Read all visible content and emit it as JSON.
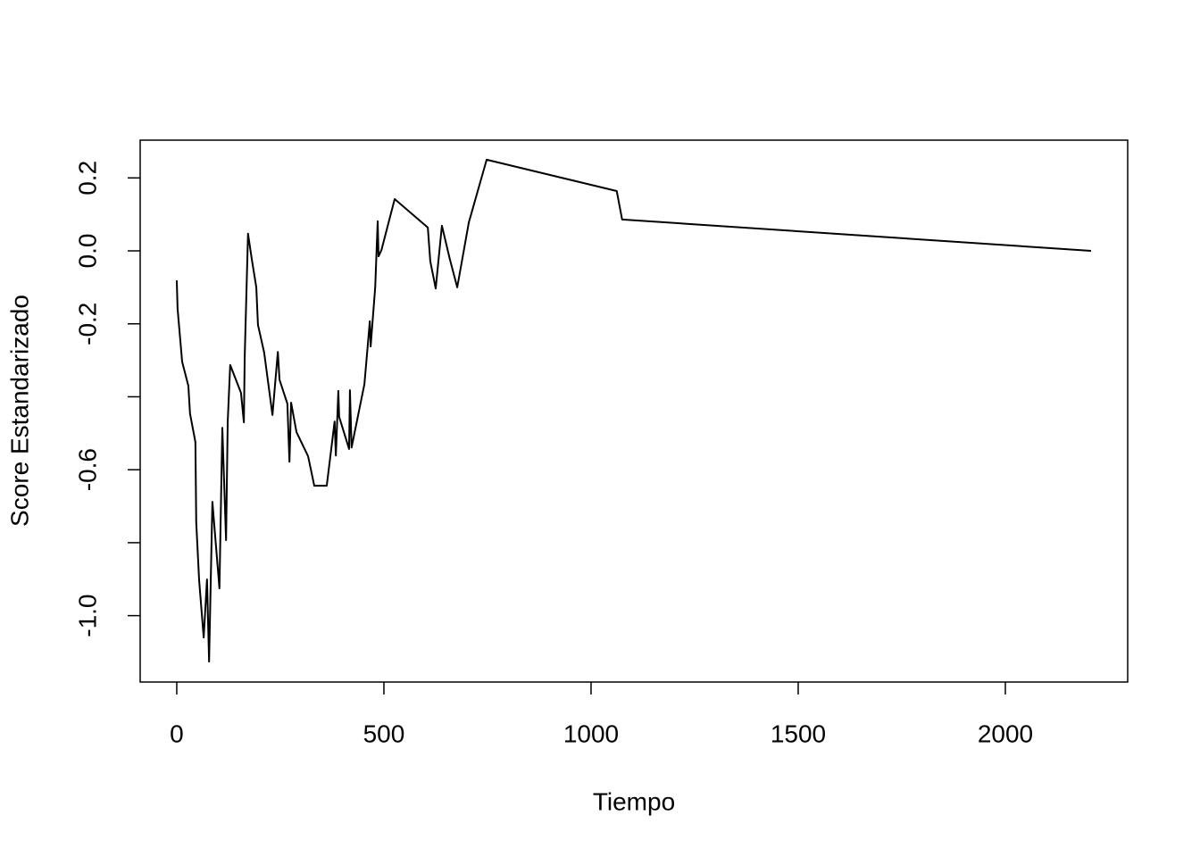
{
  "chart_data": {
    "type": "line",
    "xlabel": "Tiempo",
    "ylabel": "Score Estandarizado",
    "x": [
      0,
      2,
      13,
      28,
      32,
      45,
      47,
      54,
      65,
      73,
      78,
      86,
      103,
      110,
      119,
      123,
      129,
      155,
      162,
      164,
      172,
      181,
      192,
      196,
      211,
      231,
      244,
      248,
      267,
      272,
      276,
      289,
      317,
      332,
      362,
      381,
      384,
      390,
      392,
      416,
      418,
      422,
      453,
      466,
      468,
      479,
      485,
      487,
      494,
      526,
      606,
      612,
      625,
      640,
      659,
      677,
      705,
      748,
      1062,
      1075,
      2207
    ],
    "series": [
      {
        "color": "#000000",
        "values": [
          -0.081,
          -0.159,
          -0.304,
          -0.37,
          -0.446,
          -0.524,
          -0.744,
          -0.903,
          -1.06,
          -0.901,
          -1.126,
          -0.688,
          -0.925,
          -0.485,
          -0.793,
          -0.468,
          -0.313,
          -0.389,
          -0.47,
          -0.291,
          0.047,
          -0.022,
          -0.1,
          -0.203,
          -0.279,
          -0.45,
          -0.277,
          -0.353,
          -0.419,
          -0.578,
          -0.416,
          -0.497,
          -0.563,
          -0.644,
          -0.644,
          -0.468,
          -0.561,
          -0.384,
          -0.455,
          -0.543,
          -0.382,
          -0.539,
          -0.365,
          -0.193,
          -0.262,
          -0.1,
          0.081,
          -0.015,
          0.002,
          0.142,
          0.064,
          -0.029,
          -0.103,
          0.069,
          -0.022,
          -0.1,
          0.078,
          0.25,
          0.164,
          0.086,
          0.0
        ]
      }
    ],
    "xlim": [
      -88.3,
      2295.3
    ],
    "ylim": [
      -1.182,
      0.3035
    ],
    "xticks": [
      0,
      500,
      1000,
      1500,
      2000
    ],
    "yticks": [
      {
        "value": -1,
        "label": "-1.0"
      },
      {
        "value": -0.8,
        "label": null
      },
      -0.6,
      {
        "value": -0.4,
        "label": null
      },
      -0.2,
      {
        "value": 0,
        "label": "0.0"
      },
      0.2
    ]
  }
}
